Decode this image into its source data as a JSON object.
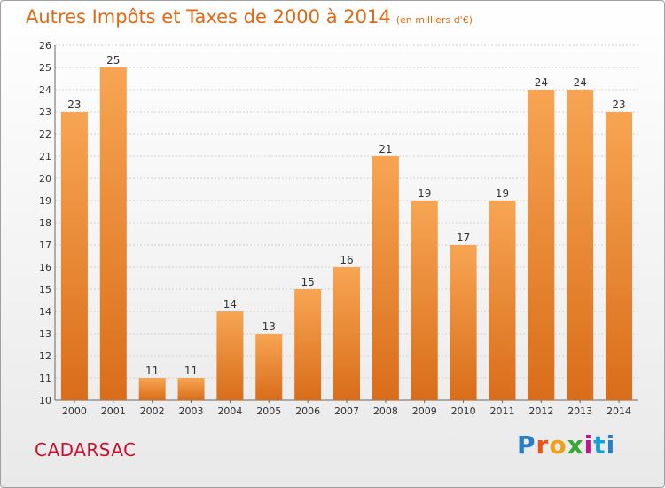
{
  "header": {
    "title": "Autres Impôts et Taxes de 2000 à 2014",
    "unit": "(en milliers d'€)"
  },
  "footer": {
    "city": "CADARSAC",
    "logo_letters": [
      "P",
      "r",
      "o",
      "x",
      "i",
      "t",
      "i"
    ]
  },
  "colors": {
    "bar_top": "#f7a553",
    "bar_bottom": "#d96d1a",
    "title": "#e06a14",
    "city": "#c8102e"
  },
  "chart_data": {
    "type": "bar",
    "title": "Autres Impôts et Taxes de 2000 à 2014",
    "categories": [
      "2000",
      "2001",
      "2002",
      "2003",
      "2004",
      "2005",
      "2006",
      "2007",
      "2008",
      "2009",
      "2010",
      "2011",
      "2012",
      "2013",
      "2014"
    ],
    "values": [
      23,
      25,
      11,
      11,
      14,
      13,
      15,
      16,
      21,
      19,
      17,
      19,
      24,
      24,
      23
    ],
    "ylim": [
      10,
      26
    ],
    "yticks": [
      10,
      11,
      12,
      13,
      14,
      15,
      16,
      17,
      18,
      19,
      20,
      21,
      22,
      23,
      24,
      25,
      26
    ],
    "grid": true,
    "data_labels": true
  }
}
